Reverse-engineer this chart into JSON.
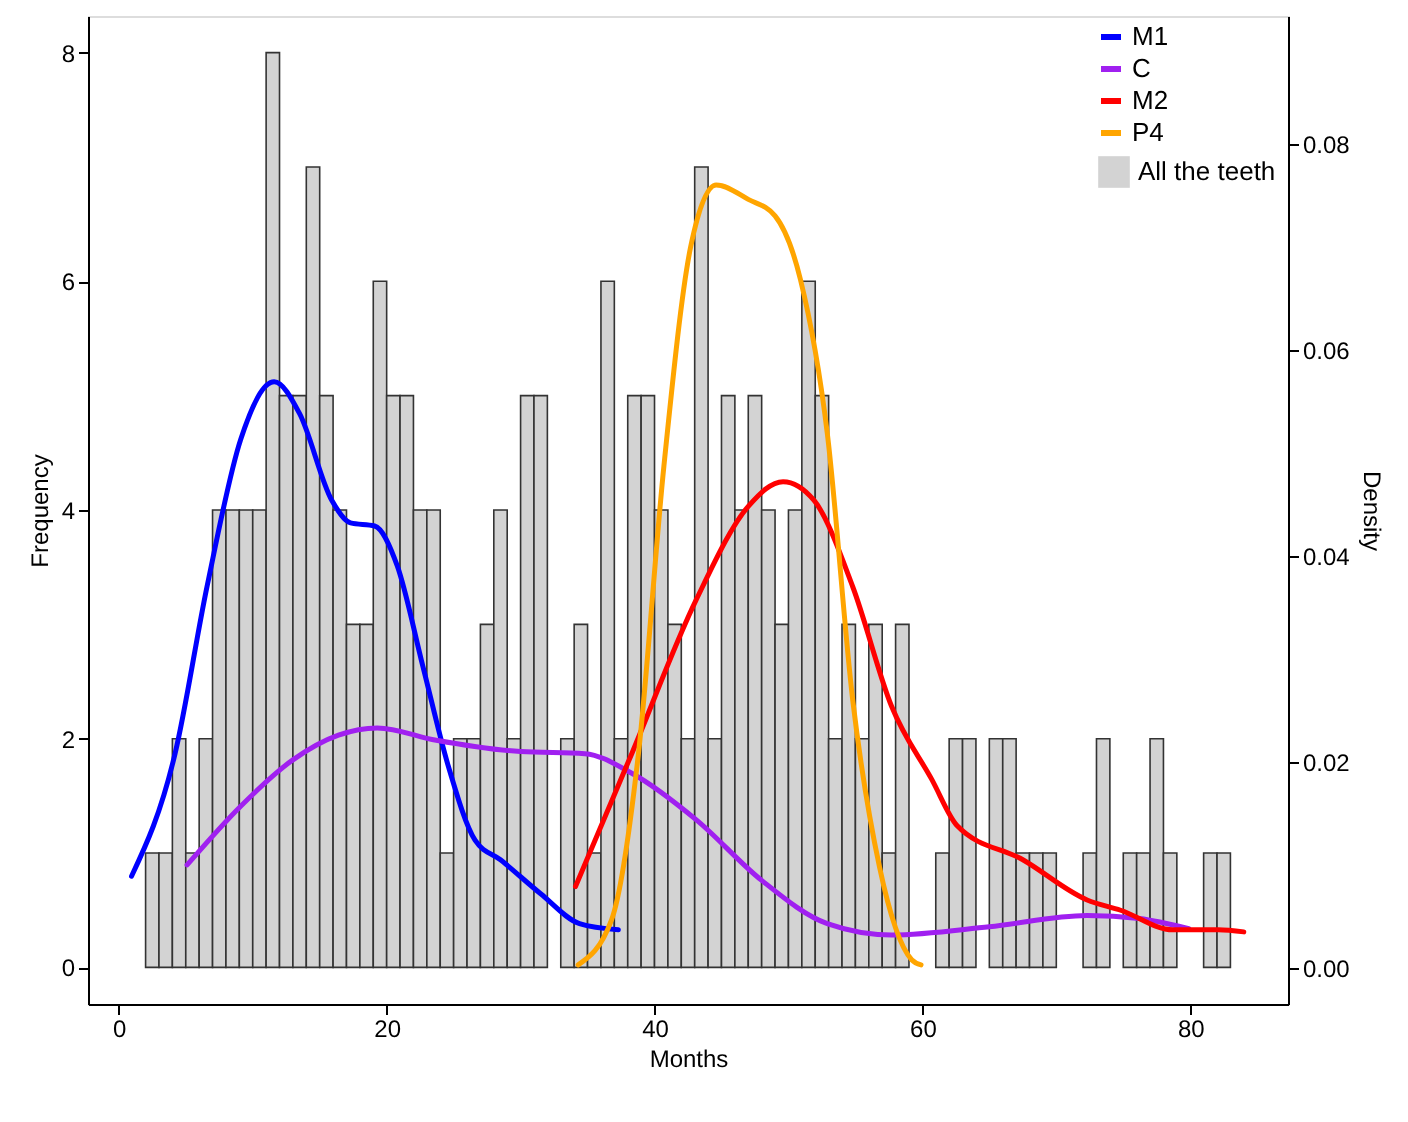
{
  "chart_data": {
    "type": "histogram",
    "xlabel": "Months",
    "ylabel": "Frequency",
    "y2label": "Density",
    "xlim": [
      -2.3,
      87.3
    ],
    "xticks": [
      0,
      20,
      40,
      60,
      80
    ],
    "ylim": [
      -0.32,
      8.32
    ],
    "yticks": [
      0,
      2,
      4,
      6,
      8
    ],
    "y2lim": [
      -0.0035,
      0.0924
    ],
    "y2ticks": [
      {
        "value": 0,
        "label": "0.00"
      },
      {
        "value": 0.02,
        "label": "0.02"
      },
      {
        "value": 0.04,
        "label": "0.04"
      },
      {
        "value": 0.06,
        "label": "0.06"
      },
      {
        "value": 0.08,
        "label": "0.08"
      }
    ],
    "grid": false,
    "legend": "top right",
    "series": [
      {
        "name": "All the teeth",
        "color": "#d3d3d3",
        "bins": [
          2,
          3,
          4,
          5,
          6,
          7,
          8,
          9,
          10,
          11,
          12,
          13,
          14,
          15,
          16,
          17,
          18,
          19,
          20,
          21,
          22,
          23,
          24,
          25,
          26,
          27,
          28,
          29,
          30,
          31,
          32,
          33,
          34,
          35,
          36,
          37,
          38,
          39,
          40,
          41,
          42,
          43,
          44,
          45,
          46,
          47,
          48,
          49,
          50,
          51,
          52,
          53,
          54,
          55,
          56,
          57,
          58,
          59,
          60,
          61,
          62,
          63,
          64,
          65,
          66,
          67,
          68,
          69,
          70,
          71,
          72,
          73,
          74,
          75,
          76,
          77,
          78,
          79,
          80,
          81,
          82,
          83
        ],
        "values": [
          1,
          1,
          2,
          1,
          2,
          4,
          4,
          4,
          4,
          8,
          5,
          5,
          7,
          5,
          4,
          3,
          3,
          6,
          5,
          5,
          4,
          4,
          1,
          2,
          2,
          3,
          4,
          2,
          5,
          5,
          0,
          2,
          3,
          1,
          6,
          2,
          5,
          5,
          4,
          3,
          2,
          7,
          2,
          5,
          4,
          5,
          4,
          3,
          4,
          6,
          5,
          2,
          3,
          2,
          3,
          1,
          3,
          0,
          0,
          1,
          2,
          2,
          0,
          2,
          2,
          1,
          1,
          1,
          0,
          0,
          1,
          2,
          0,
          1,
          1,
          2,
          1,
          0,
          0,
          1,
          1
        ]
      },
      {
        "type": "line",
        "name": "M1",
        "color": "#0000ff",
        "axis": "y2",
        "x": [
          0.95,
          4.2,
          6.6,
          9.1,
          11.6,
          13.5,
          15.9,
          17.3,
          19.1,
          20.8,
          22.7,
          24.6,
          26.6,
          28.5,
          31.5,
          34.4,
          37.3
        ],
        "values": [
          0.0089,
          0.0208,
          0.0371,
          0.0513,
          0.0569,
          0.0538,
          0.0454,
          0.0432,
          0.0429,
          0.039,
          0.0293,
          0.0196,
          0.0124,
          0.0105,
          0.0072,
          0.0043,
          0.0037
        ]
      },
      {
        "type": "line",
        "name": "C",
        "color": "#a020f0",
        "axis": "y2",
        "x": [
          5.1,
          9.1,
          13.0,
          16.4,
          19.3,
          23.7,
          30.0,
          34.8,
          38.3,
          43.1,
          48.0,
          52.9,
          57.7,
          65.0,
          72.3,
          76.2,
          79.9
        ],
        "values": [
          0.01,
          0.0157,
          0.0202,
          0.0226,
          0.0233,
          0.0221,
          0.021,
          0.0208,
          0.0189,
          0.0144,
          0.0085,
          0.0043,
          0.0032,
          0.004,
          0.0051,
          0.0048,
          0.0038
        ]
      },
      {
        "type": "line",
        "name": "M2",
        "color": "#ff0000",
        "axis": "y2",
        "x": [
          34.1,
          38.3,
          43.1,
          47.0,
          49.6,
          51.9,
          54.8,
          57.7,
          60.7,
          62.6,
          67.5,
          72.3,
          74.8,
          78.7,
          82.1,
          84.0
        ],
        "values": [
          0.0079,
          0.0208,
          0.0357,
          0.0448,
          0.0472,
          0.0454,
          0.037,
          0.0254,
          0.0183,
          0.0138,
          0.0105,
          0.0066,
          0.0056,
          0.0037,
          0.0037,
          0.0035
        ]
      },
      {
        "type": "line",
        "name": "P4",
        "color": "#ffa500",
        "axis": "y2",
        "x": [
          34.3,
          36.8,
          38.8,
          40.7,
          42.7,
          44.6,
          47.0,
          49.0,
          50.9,
          52.9,
          54.8,
          56.8,
          59.2,
          59.9
        ],
        "values": [
          0.0003,
          0.0047,
          0.0208,
          0.0487,
          0.07,
          0.076,
          0.0746,
          0.073,
          0.0668,
          0.0519,
          0.026,
          0.0098,
          0.0008,
          0.0003
        ]
      }
    ]
  }
}
